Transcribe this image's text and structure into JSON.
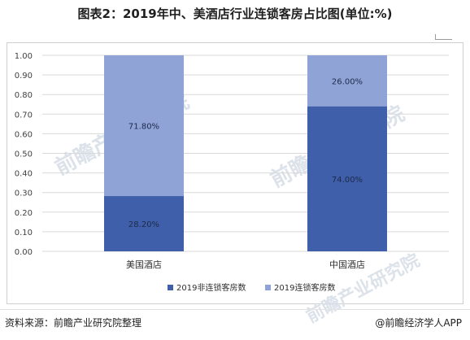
{
  "title": "图表2：2019年中、美酒店行业连锁客房占比图(单位:%)",
  "source": "资料来源：前瞻产业研究院整理",
  "brand": "@前瞻经济学人APP",
  "watermark": "前瞻产业研究院",
  "chart_data": {
    "type": "bar",
    "stacked": true,
    "categories": [
      "美国酒店",
      "中国酒店"
    ],
    "series": [
      {
        "name": "2019非连锁客房数",
        "values": [
          0.282,
          0.74
        ],
        "labels": [
          "28.20%",
          "74.00%"
        ],
        "color": "#3f5faa"
      },
      {
        "name": "2019连锁客房数",
        "values": [
          0.718,
          0.26
        ],
        "labels": [
          "71.80%",
          "26.00%"
        ],
        "color": "#8fa3d6"
      }
    ],
    "yticks": [
      "0.00",
      "0.10",
      "0.20",
      "0.30",
      "0.40",
      "0.50",
      "0.60",
      "0.70",
      "0.80",
      "0.90",
      "1.00"
    ],
    "ylim": [
      0,
      1
    ],
    "grid": true,
    "legend": "bottom"
  }
}
